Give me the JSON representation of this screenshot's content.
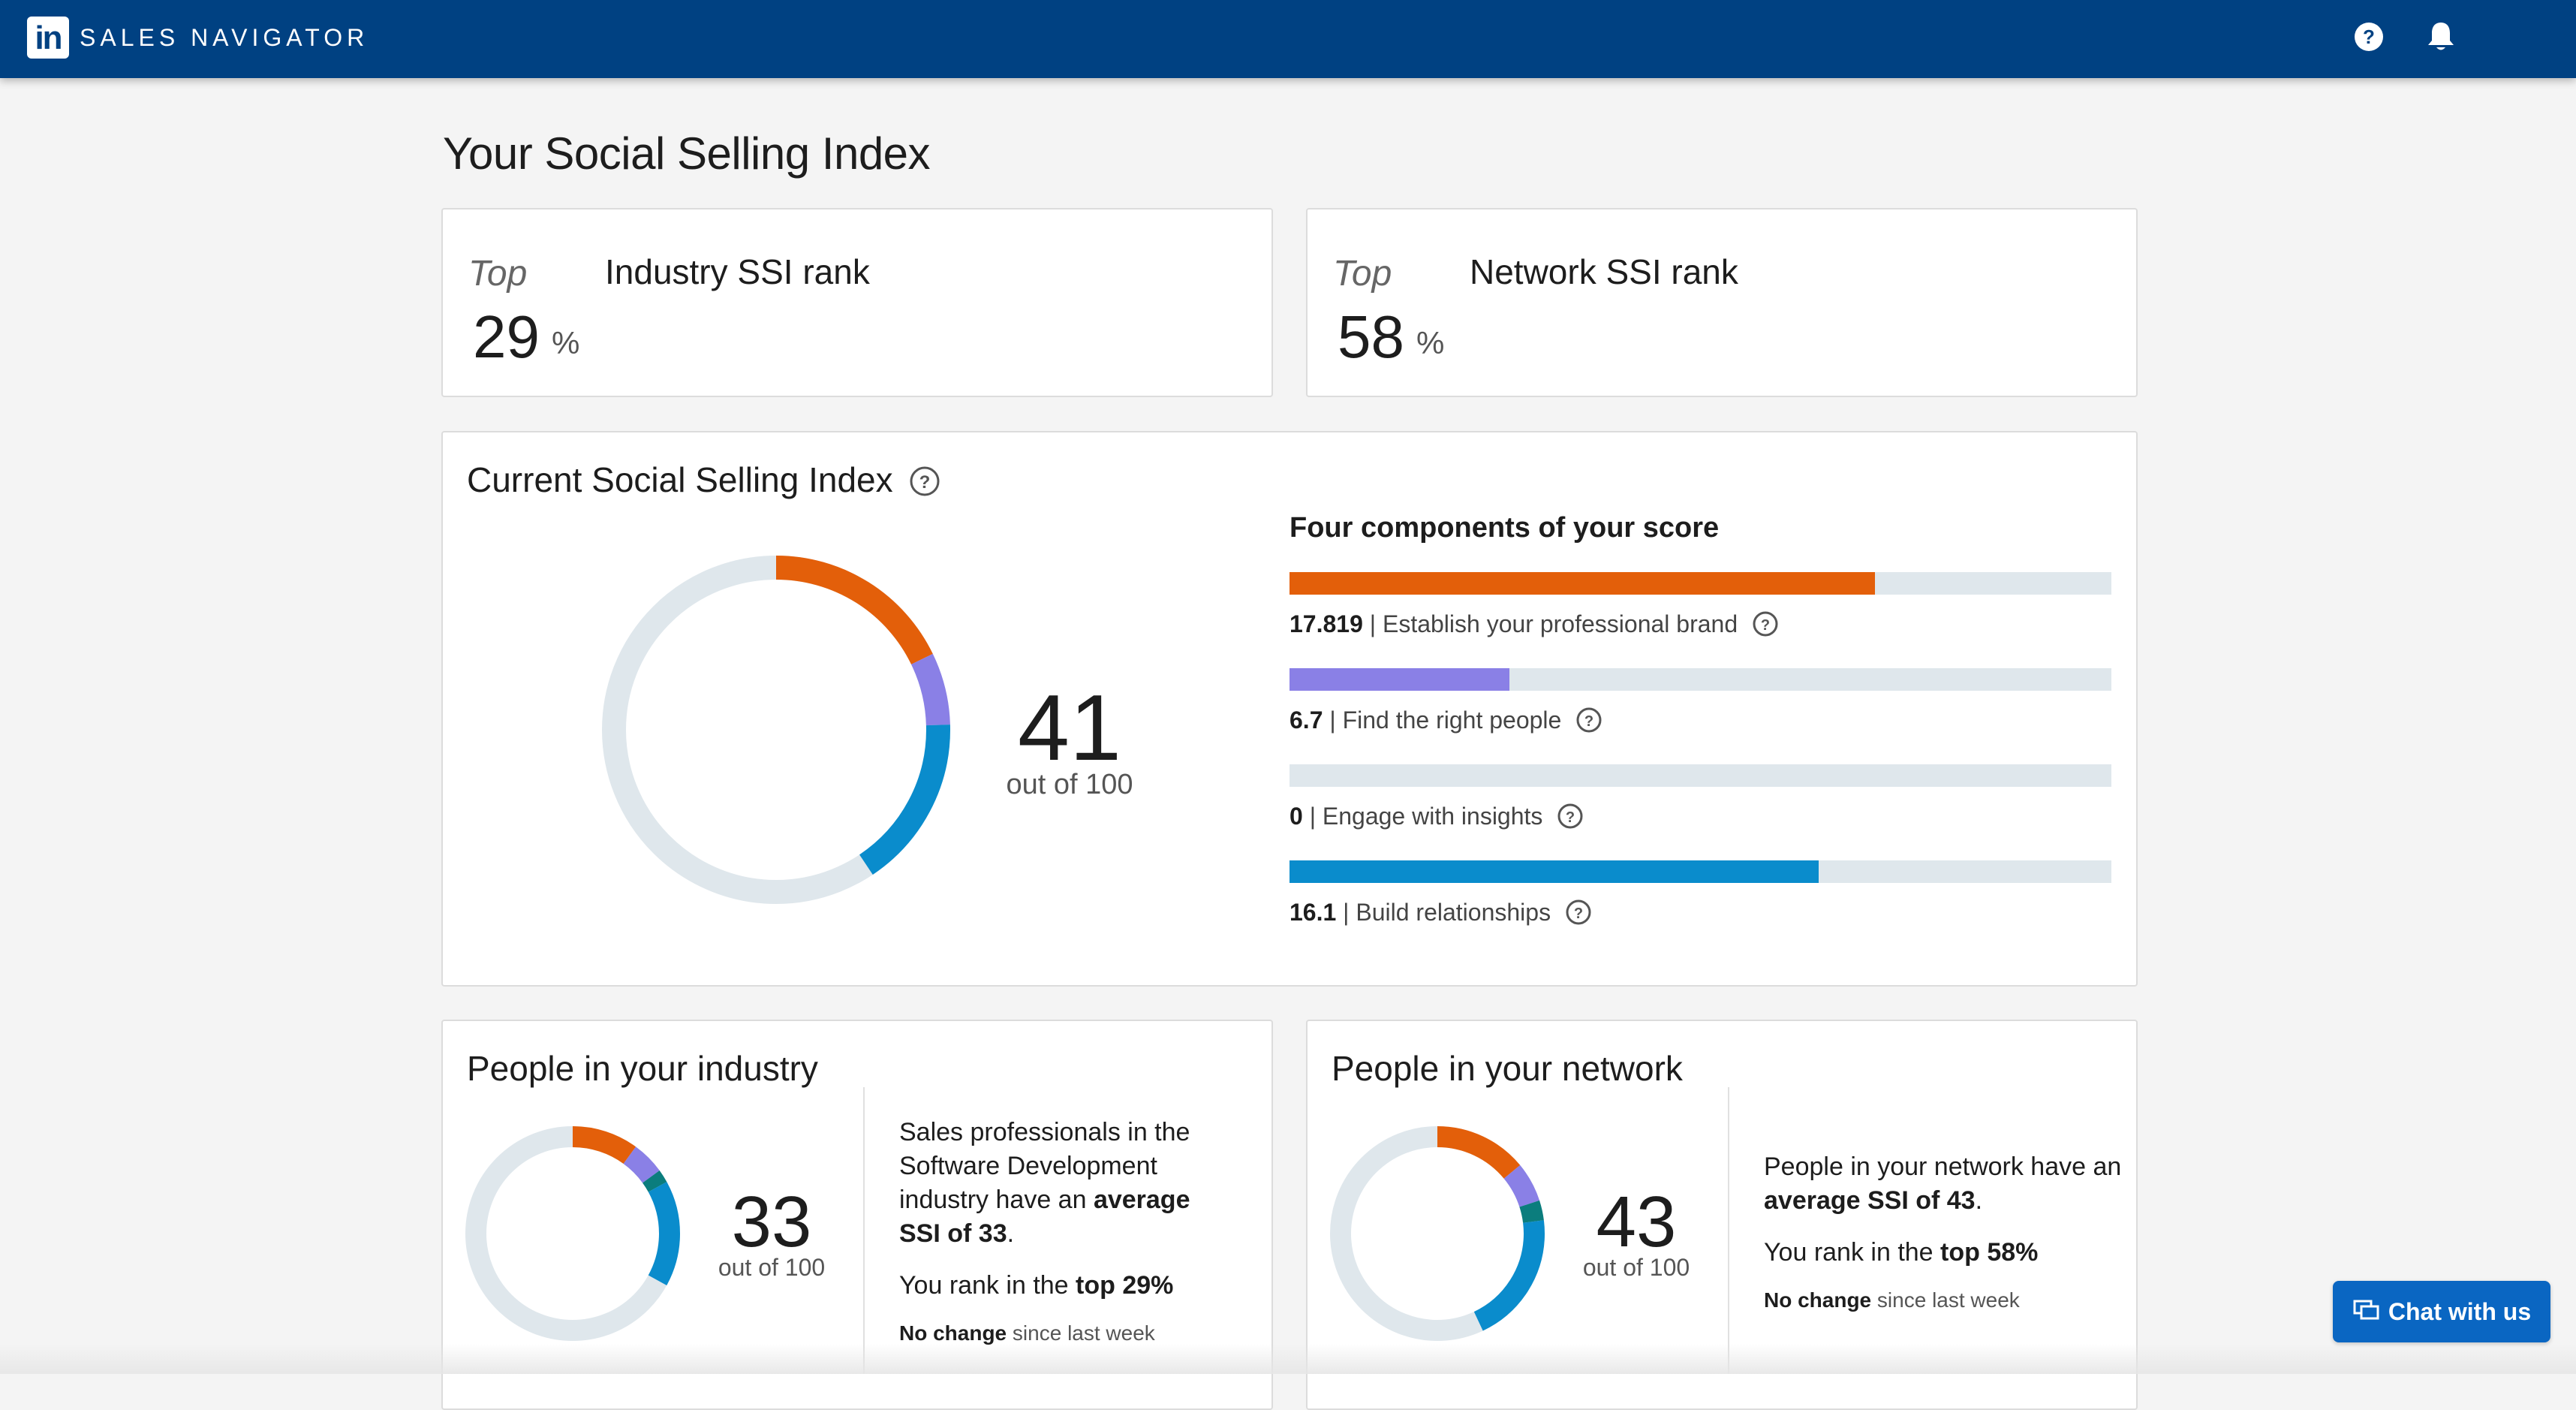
{
  "header": {
    "logo_text": "in",
    "app_name": "SALES NAVIGATOR",
    "icons": [
      "help-icon",
      "bell-icon"
    ],
    "brand_color": "#004182"
  },
  "page": {
    "title": "Your Social Selling Index"
  },
  "industry_rank": {
    "top_label": "Top",
    "value": "29",
    "unit": "%",
    "title": "Industry SSI rank"
  },
  "network_rank": {
    "top_label": "Top",
    "value": "58",
    "unit": "%",
    "title": "Network SSI rank"
  },
  "current_ssi": {
    "title": "Current Social Selling Index",
    "score": "41",
    "score_sub": "out of 100",
    "components_heading": "Four components of your score",
    "components": [
      {
        "value": "17.819",
        "label": "| Establish your professional brand",
        "fraction": 0.7127,
        "color": "#e35f0a"
      },
      {
        "value": "6.7",
        "label": "| Find the right people",
        "fraction": 0.268,
        "color": "#8a80e6"
      },
      {
        "value": "0",
        "label": "| Engage with insights",
        "fraction": 0.0,
        "color": "#0b7d7d"
      },
      {
        "value": "16.1",
        "label": "| Build relationships",
        "fraction": 0.644,
        "color": "#0a8ccc"
      }
    ],
    "track_color": "#dfe7ec"
  },
  "industry_people": {
    "title": "People in your industry",
    "score": "33",
    "score_sub": "out of 100",
    "components": [
      {
        "color": "#e35f0a",
        "fraction": 0.1
      },
      {
        "color": "#8a80e6",
        "fraction": 0.05
      },
      {
        "color": "#0b7d7d",
        "fraction": 0.02
      },
      {
        "color": "#0a8ccc",
        "fraction": 0.16
      }
    ],
    "text_pre": "Sales professionals in the Software Development industry have an ",
    "text_bold": "average SSI of 33",
    "text_post": ".",
    "rank_pre": "You rank in the ",
    "rank_bold": "top 29%",
    "change_bold": "No change",
    "change_rest": " since last week"
  },
  "network_people": {
    "title": "People in your network",
    "score": "43",
    "score_sub": "out of 100",
    "components": [
      {
        "color": "#e35f0a",
        "fraction": 0.14
      },
      {
        "color": "#8a80e6",
        "fraction": 0.06
      },
      {
        "color": "#0b7d7d",
        "fraction": 0.03
      },
      {
        "color": "#0a8ccc",
        "fraction": 0.2
      }
    ],
    "text_pre": "People in your network have an ",
    "text_bold": "average SSI of 43",
    "text_post": ".",
    "rank_pre": "You rank in the ",
    "rank_bold": "top 58%",
    "change_bold": "No change",
    "change_rest": " since last week"
  },
  "chat": {
    "label": "Chat with us"
  }
}
